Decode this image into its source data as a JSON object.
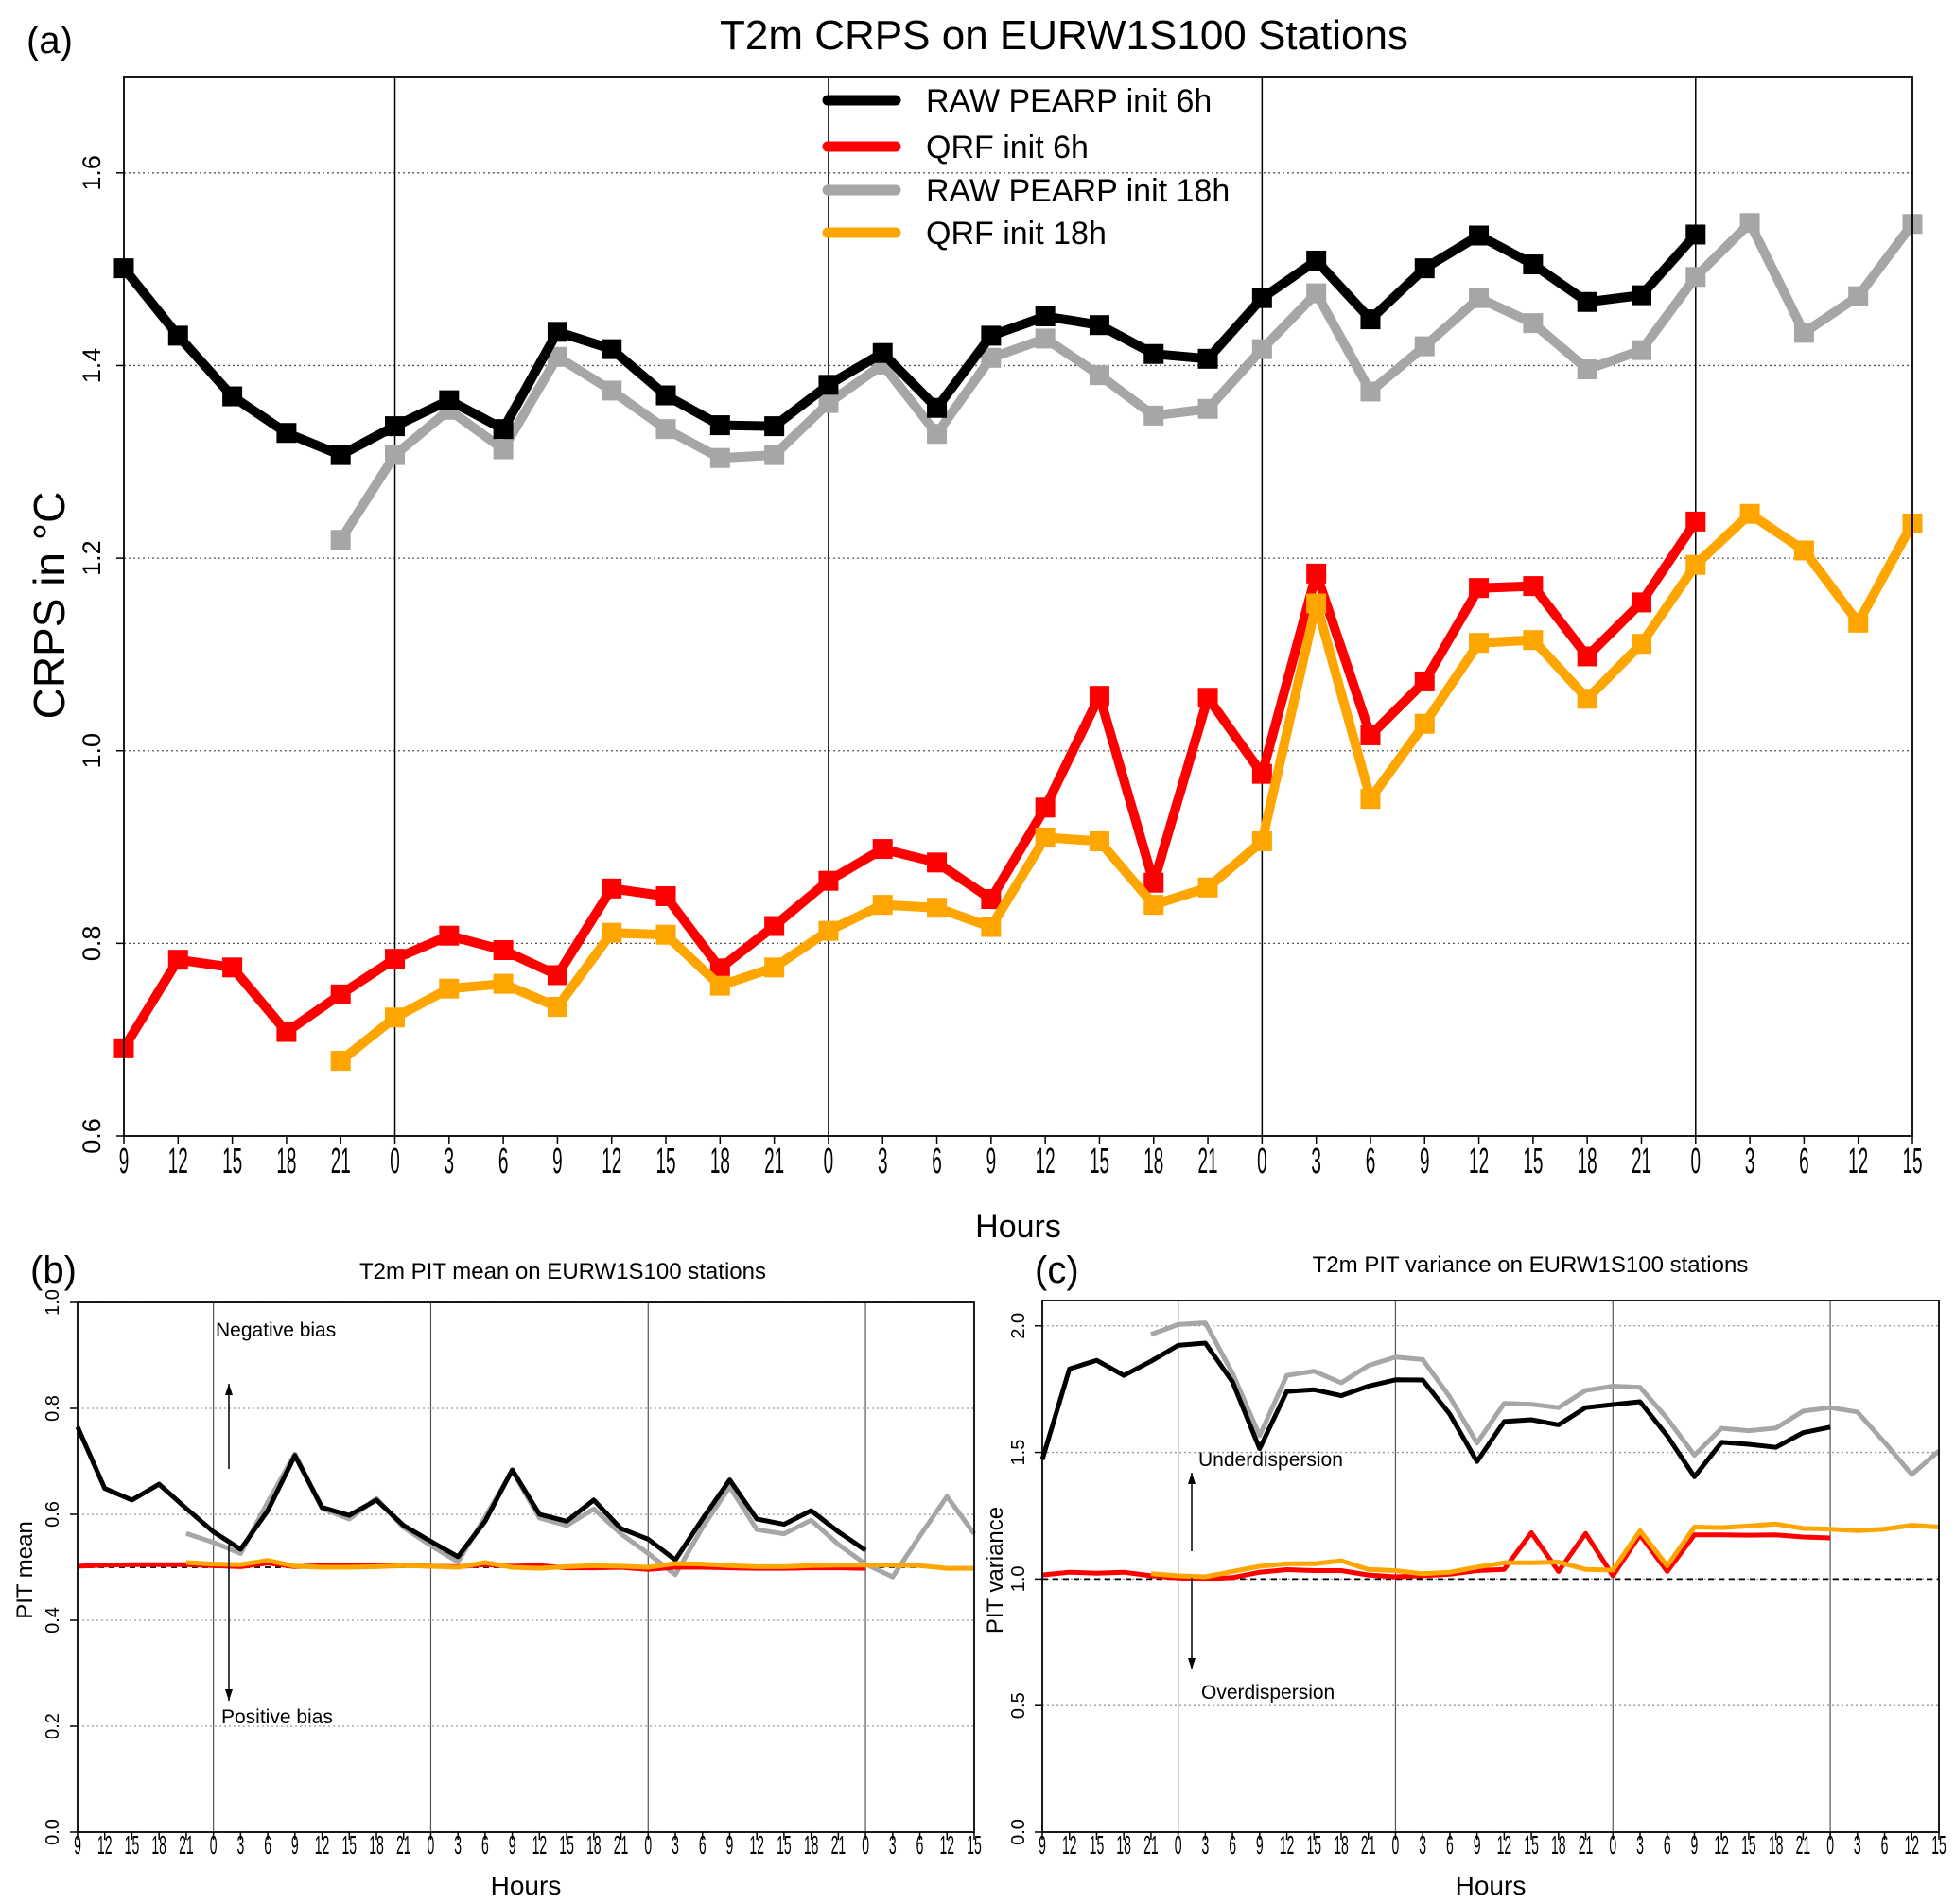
{
  "colors": {
    "raw6": "#000000",
    "qrf6": "#ff0000",
    "raw18": "#a6a6a6",
    "qrf18": "#ffa500"
  },
  "legend": [
    "RAW PEARP init 6h",
    "QRF init 6h",
    "RAW PEARP init 18h",
    "QRF init 18h"
  ],
  "chart_data": [
    {
      "type": "line",
      "panel_label": "(a)",
      "title": "T2m CRPS on  EURW1S100 Stations",
      "xlabel": "Hours",
      "ylabel": "CRPS in °C",
      "ylim": [
        0.6,
        1.7
      ],
      "yticks": [
        0.6,
        0.8,
        1.0,
        1.2,
        1.4,
        1.6
      ],
      "ytick_labels": [
        "0.6",
        "0.8",
        "1.0",
        "1.2",
        "1.4",
        "1.6"
      ],
      "x_tick_labels": [
        "9",
        "12",
        "15",
        "18",
        "21",
        "0",
        "3",
        "6",
        "9",
        "12",
        "15",
        "18",
        "21",
        "0",
        "3",
        "6",
        "9",
        "12",
        "15",
        "18",
        "21",
        "0",
        "3",
        "6",
        "9",
        "12",
        "15",
        "18",
        "21",
        "0",
        "3",
        "6",
        "12",
        "15"
      ],
      "day_boundaries": [
        5,
        13,
        21,
        29
      ],
      "grid": "horizontal dotted",
      "legend_position": "top-center",
      "markers": true,
      "series": [
        {
          "name": "RAW PEARP init 6h",
          "start": 0,
          "values": [
            1.501,
            1.431,
            1.368,
            1.33,
            1.307,
            1.337,
            1.364,
            1.334,
            1.435,
            1.417,
            1.369,
            1.338,
            1.337,
            1.38,
            1.413,
            1.356,
            1.431,
            1.451,
            1.442,
            1.412,
            1.407,
            1.47,
            1.509,
            1.448,
            1.501,
            1.535,
            1.505,
            1.466,
            1.473,
            1.536
          ]
        },
        {
          "name": "QRF init 6h",
          "start": 0,
          "values": [
            0.691,
            0.783,
            0.775,
            0.708,
            0.747,
            0.784,
            0.808,
            0.793,
            0.767,
            0.857,
            0.849,
            0.774,
            0.818,
            0.865,
            0.898,
            0.884,
            0.846,
            0.941,
            1.057,
            0.863,
            1.055,
            0.976,
            1.184,
            1.016,
            1.072,
            1.169,
            1.171,
            1.098,
            1.154,
            1.238
          ]
        },
        {
          "name": "RAW PEARP init 18h",
          "start": 4,
          "values": [
            1.219,
            1.307,
            1.354,
            1.313,
            1.409,
            1.374,
            1.334,
            1.304,
            1.307,
            1.361,
            1.401,
            1.329,
            1.408,
            1.428,
            1.39,
            1.348,
            1.355,
            1.417,
            1.475,
            1.373,
            1.42,
            1.47,
            1.444,
            1.396,
            1.416,
            1.492,
            1.548,
            1.434,
            1.472,
            1.547
          ]
        },
        {
          "name": "QRF init 18h",
          "start": 4,
          "values": [
            0.678,
            0.723,
            0.753,
            0.758,
            0.734,
            0.811,
            0.809,
            0.756,
            0.775,
            0.813,
            0.84,
            0.837,
            0.817,
            0.91,
            0.906,
            0.84,
            0.858,
            0.906,
            1.153,
            0.95,
            1.028,
            1.112,
            1.115,
            1.054,
            1.111,
            1.193,
            1.246,
            1.208,
            1.133,
            1.236
          ]
        }
      ]
    },
    {
      "type": "line",
      "panel_label": "(b)",
      "title": "T2m PIT mean on EURW1S100 stations",
      "xlabel": "Hours",
      "ylabel": "PIT mean",
      "ylim": [
        0.0,
        1.0
      ],
      "yticks": [
        0.0,
        0.2,
        0.4,
        0.6,
        0.8,
        1.0
      ],
      "ytick_labels": [
        "0.0",
        "0.2",
        "0.4",
        "0.6",
        "0.8",
        "1.0"
      ],
      "reference_line": 0.5,
      "annotations": [
        "Negative bias",
        "Positive bias"
      ],
      "x_tick_labels": [
        "9",
        "12",
        "15",
        "18",
        "21",
        "0",
        "3",
        "6",
        "9",
        "12",
        "15",
        "18",
        "21",
        "0",
        "3",
        "6",
        "9",
        "12",
        "15",
        "18",
        "21",
        "0",
        "3",
        "6",
        "9",
        "12",
        "15",
        "18",
        "21",
        "0",
        "3",
        "6",
        "12",
        "15"
      ],
      "day_boundaries": [
        5,
        13,
        21,
        29
      ],
      "series": [
        {
          "name": "RAW PEARP init 6h",
          "start": 0,
          "values": [
            0.765,
            0.649,
            0.627,
            0.657,
            0.611,
            0.567,
            0.534,
            0.607,
            0.711,
            0.613,
            0.598,
            0.627,
            0.579,
            0.549,
            0.52,
            0.587,
            0.684,
            0.6,
            0.587,
            0.627,
            0.573,
            0.553,
            0.514,
            0.591,
            0.665,
            0.591,
            0.581,
            0.607,
            0.567,
            0.532
          ]
        },
        {
          "name": "QRF init 6h",
          "start": 0,
          "values": [
            0.502,
            0.504,
            0.505,
            0.505,
            0.505,
            0.503,
            0.501,
            0.508,
            0.501,
            0.503,
            0.503,
            0.504,
            0.504,
            0.502,
            0.501,
            0.505,
            0.502,
            0.503,
            0.499,
            0.499,
            0.5,
            0.496,
            0.5,
            0.5,
            0.499,
            0.498,
            0.498,
            0.499,
            0.499,
            0.498
          ]
        },
        {
          "name": "RAW PEARP init 18h",
          "start": 4,
          "values": [
            0.564,
            0.547,
            0.526,
            0.623,
            0.714,
            0.611,
            0.591,
            0.63,
            0.575,
            0.541,
            0.51,
            0.595,
            0.682,
            0.593,
            0.579,
            0.61,
            0.563,
            0.526,
            0.486,
            0.575,
            0.652,
            0.571,
            0.563,
            0.589,
            0.543,
            0.506,
            0.482,
            0.559,
            0.634,
            0.563
          ]
        },
        {
          "name": "QRF init 18h",
          "start": 4,
          "values": [
            0.509,
            0.506,
            0.505,
            0.513,
            0.502,
            0.5,
            0.5,
            0.501,
            0.503,
            0.502,
            0.5,
            0.509,
            0.5,
            0.498,
            0.501,
            0.503,
            0.502,
            0.5,
            0.507,
            0.506,
            0.503,
            0.501,
            0.501,
            0.503,
            0.504,
            0.504,
            0.504,
            0.503,
            0.498,
            0.498
          ]
        }
      ]
    },
    {
      "type": "line",
      "panel_label": "(c)",
      "title": "T2m PIT variance on EURW1S100 stations",
      "xlabel": "Hours",
      "ylabel": "PIT variance",
      "ylim": [
        0.0,
        2.1
      ],
      "yticks": [
        0.0,
        0.5,
        1.0,
        1.5,
        2.0
      ],
      "ytick_labels": [
        "0.0",
        "0.5",
        "1.0",
        "1.5",
        "2.0"
      ],
      "reference_line": 1.0,
      "annotations": [
        "Underdispersion",
        "Overdispersion"
      ],
      "x_tick_labels": [
        "9",
        "12",
        "15",
        "18",
        "21",
        "0",
        "3",
        "6",
        "9",
        "12",
        "15",
        "18",
        "21",
        "0",
        "3",
        "6",
        "9",
        "12",
        "15",
        "18",
        "21",
        "0",
        "3",
        "6",
        "9",
        "12",
        "15",
        "18",
        "21",
        "0",
        "3",
        "6",
        "12",
        "15"
      ],
      "day_boundaries": [
        5,
        13,
        21,
        29
      ],
      "series": [
        {
          "name": "RAW PEARP init 6h",
          "start": 0,
          "values": [
            1.472,
            1.83,
            1.864,
            1.804,
            1.86,
            1.923,
            1.932,
            1.779,
            1.515,
            1.741,
            1.748,
            1.724,
            1.762,
            1.787,
            1.786,
            1.651,
            1.464,
            1.622,
            1.629,
            1.609,
            1.677,
            1.689,
            1.7,
            1.566,
            1.404,
            1.54,
            1.532,
            1.52,
            1.578,
            1.6
          ]
        },
        {
          "name": "QRF init 6h",
          "start": 0,
          "values": [
            1.016,
            1.027,
            1.023,
            1.027,
            1.013,
            1.004,
            0.999,
            1.006,
            1.027,
            1.037,
            1.033,
            1.033,
            1.016,
            1.009,
            1.013,
            1.019,
            1.033,
            1.038,
            1.183,
            1.03,
            1.18,
            1.013,
            1.174,
            1.03,
            1.174,
            1.174,
            1.173,
            1.174,
            1.166,
            1.162
          ]
        },
        {
          "name": "RAW PEARP init 18h",
          "start": 4,
          "values": [
            1.966,
            2.005,
            2.012,
            1.813,
            1.566,
            1.804,
            1.821,
            1.775,
            1.843,
            1.877,
            1.867,
            1.719,
            1.537,
            1.694,
            1.69,
            1.677,
            1.745,
            1.762,
            1.757,
            1.634,
            1.489,
            1.595,
            1.586,
            1.596,
            1.663,
            1.677,
            1.66,
            1.54,
            1.413,
            1.506
          ]
        },
        {
          "name": "QRF init 18h",
          "start": 4,
          "values": [
            1.021,
            1.013,
            1.009,
            1.03,
            1.05,
            1.06,
            1.06,
            1.072,
            1.038,
            1.033,
            1.021,
            1.027,
            1.047,
            1.064,
            1.064,
            1.067,
            1.038,
            1.035,
            1.191,
            1.052,
            1.205,
            1.203,
            1.209,
            1.217,
            1.2,
            1.197,
            1.191,
            1.197,
            1.212,
            1.205
          ]
        }
      ]
    }
  ]
}
